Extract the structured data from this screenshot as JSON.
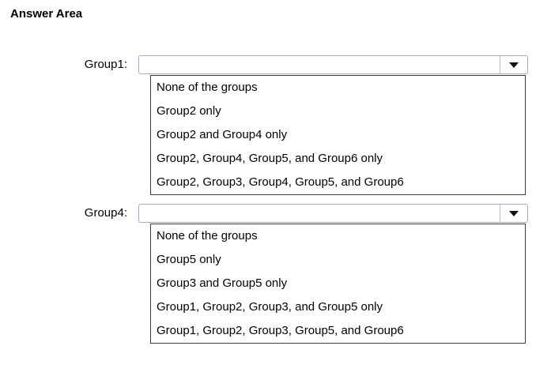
{
  "title": "Answer Area",
  "colors": {
    "background": "#ffffff",
    "combo_border": "#a6a8c7",
    "list_border": "#3c3c3c",
    "arrow": "#111111",
    "text": "#000000"
  },
  "questions": [
    {
      "label": "Group1:",
      "selected_value": "",
      "options": [
        "None of the groups",
        "Group2 only",
        "Group2 and Group4 only",
        "Group2, Group4, Group5, and Group6 only",
        "Group2, Group3, Group4, Group5, and Group6"
      ]
    },
    {
      "label": "Group4:",
      "selected_value": "",
      "options": [
        "None of the groups",
        "Group5 only",
        "Group3 and Group5 only",
        "Group1, Group2, Group3, and Group5 only",
        "Group1, Group2, Group3, Group5, and Group6"
      ]
    }
  ]
}
